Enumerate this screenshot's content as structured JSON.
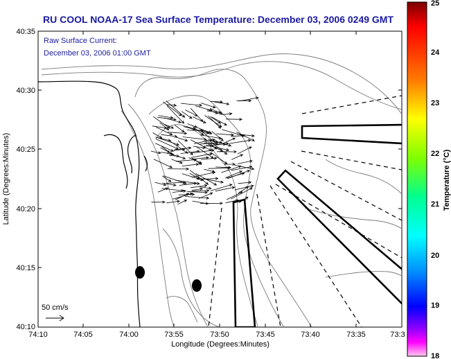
{
  "title": "RU COOL  NOAA-17  Sea Surface Temperature:  December 03, 2006 0249 GMT",
  "current_note": {
    "line1": "Raw Surface Current:",
    "line2": "December 03, 2006 01:00 GMT"
  },
  "axes": {
    "xlabel": "Longitude (Degrees:Minutes)",
    "ylabel": "Latitude (Degrees:Minutes)",
    "x_ticks": [
      "74:10",
      "74:05",
      "74:00",
      "73:55",
      "73:50",
      "73:45",
      "73:40",
      "73:35",
      "73:3"
    ],
    "y_ticks": [
      "40:35",
      "40:30",
      "40:25",
      "40:20",
      "40:15",
      "40:10"
    ]
  },
  "scale": {
    "label": "50 cm/s"
  },
  "colorbar": {
    "label": "Temperature (°C)",
    "ticks": [
      "25",
      "24",
      "23",
      "22",
      "21",
      "20",
      "19",
      "18"
    ],
    "colors": [
      "#8b0000",
      "#ff0000",
      "#ff8000",
      "#ffff00",
      "#80ff00",
      "#00ff80",
      "#00ffff",
      "#0080ff",
      "#0000ff",
      "#8000ff",
      "#ff00ff",
      "#ffc0e0"
    ]
  }
}
